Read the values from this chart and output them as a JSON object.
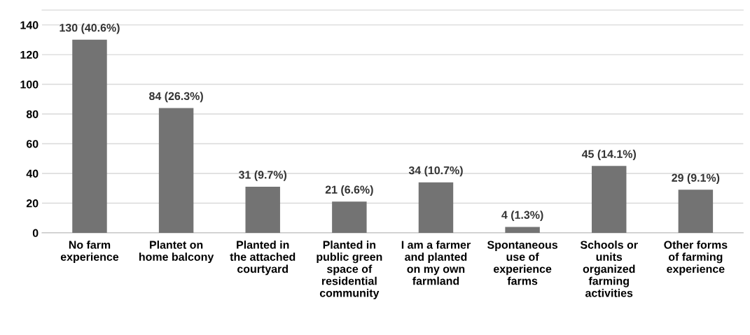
{
  "chart_data": {
    "type": "bar",
    "categories": [
      "No farm\nexperience",
      "Plantet on\nhome balcony",
      "Planted in\nthe attached\ncourtyard",
      "Planted in\npublic green\nspace of\nresidential\ncommunity",
      "I am a farmer\nand planted\non my own\nfarmland",
      "Spontaneous\nuse of\nexperience\nfarms",
      "Schools or\nunits\norganized\nfarming\nactivities",
      "Other forms\nof farming\nexperience"
    ],
    "values": [
      130,
      84,
      31,
      21,
      34,
      4,
      45,
      29
    ],
    "value_labels": [
      "130 (40.6%)",
      "84 (26.3%)",
      "31 (9.7%)",
      "21 (6.6%)",
      "34 (10.7%)",
      "4 (1.3%)",
      "45 (14.1%)",
      "29 (9.1%)"
    ],
    "color": "#737373",
    "ylim": [
      0,
      150
    ],
    "yticks": [
      0,
      20,
      40,
      60,
      80,
      100,
      120,
      140
    ],
    "grid": "y"
  }
}
